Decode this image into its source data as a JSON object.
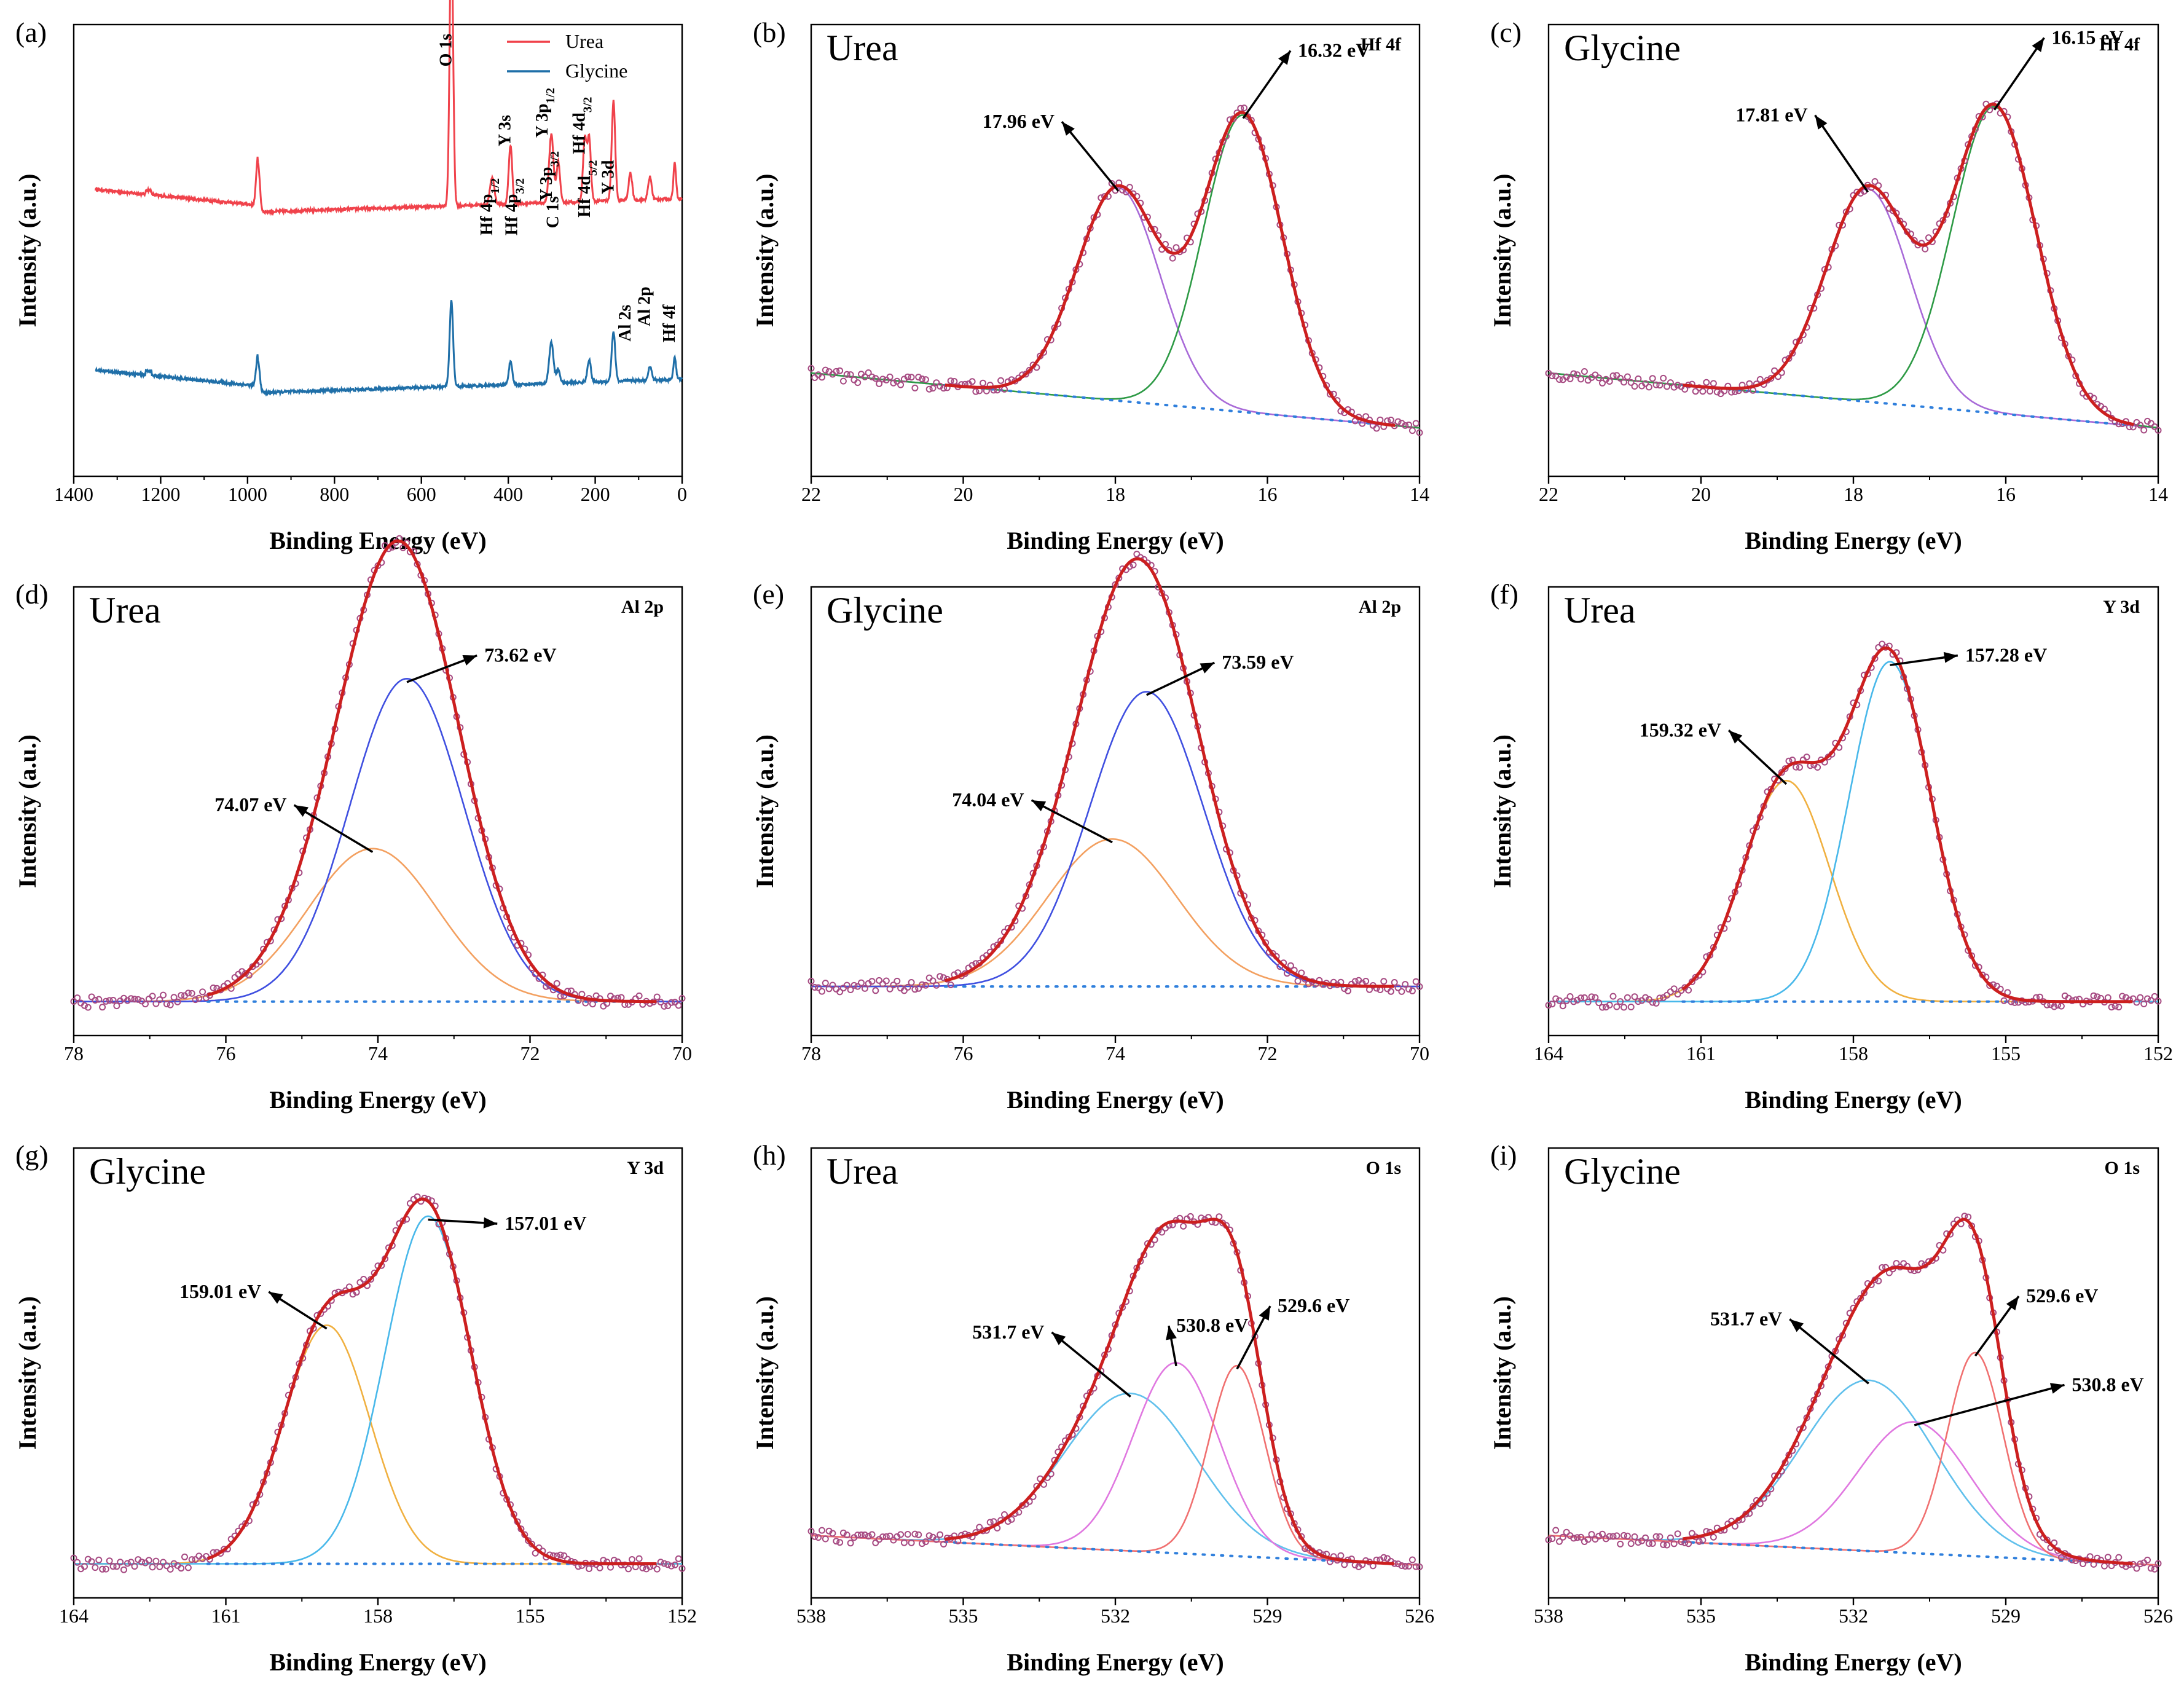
{
  "colors": {
    "envelope": "#cc1f1f",
    "raw": "#a64a82",
    "baseline": "#2f7fdc",
    "survey_urea": "#f0424b",
    "survey_glycine": "#1f6fa8",
    "hf_low": "#a86ad8",
    "hf_high": "#2d9a45",
    "al_a": "#f3a060",
    "al_b": "#3f4fe0",
    "y_a": "#f0b040",
    "y_b": "#48b8ea",
    "o_a": "#60c0ec",
    "o_b": "#e078e0",
    "o_c": "#f07070"
  },
  "chart_data": [
    {
      "panel": "(a)",
      "type": "line",
      "xlabel": "Binding Energy (eV)",
      "ylabel": "Intensity (a.u.)",
      "xlim": [
        1400,
        0
      ],
      "xticks": [
        "1400",
        "1200",
        "1000",
        "800",
        "600",
        "400",
        "200",
        "0"
      ],
      "legend": [
        "Urea",
        "Glycine"
      ],
      "series": [
        {
          "name": "Urea",
          "offset": 0.62,
          "peaks": [
            [
              976,
              0.11,
              4
            ],
            [
              531,
              0.62,
              4
            ],
            [
              437,
              0.06,
              5
            ],
            [
              395,
              0.13,
              4
            ],
            [
              301,
              0.15,
              5
            ],
            [
              285,
              0.09,
              4
            ],
            [
              224,
              0.14,
              4
            ],
            [
              214,
              0.14,
              4
            ],
            [
              158,
              0.22,
              4
            ],
            [
              119,
              0.06,
              4
            ],
            [
              74,
              0.05,
              4
            ],
            [
              17,
              0.08,
              3
            ]
          ]
        },
        {
          "name": "Glycine",
          "offset": 0.22,
          "peaks": [
            [
              976,
              0.07,
              4
            ],
            [
              531,
              0.19,
              4
            ],
            [
              395,
              0.05,
              4
            ],
            [
              301,
              0.09,
              5
            ],
            [
              285,
              0.03,
              4
            ],
            [
              214,
              0.05,
              4
            ],
            [
              158,
              0.11,
              4
            ],
            [
              74,
              0.03,
              4
            ],
            [
              17,
              0.05,
              3
            ]
          ]
        }
      ],
      "peak_labels": [
        {
          "name": "O 1s",
          "x": 531
        },
        {
          "name": "Hf 4p",
          "sub": "1/2",
          "x": 437
        },
        {
          "name": "Y 3s",
          "x": 395
        },
        {
          "name": "Hf 4p",
          "sub": "3/2",
          "x": 380
        },
        {
          "name": "Y 3p",
          "sub": "1/2",
          "x": 310
        },
        {
          "name": "Y 3p",
          "sub": "3/2",
          "x": 300
        },
        {
          "name": "C 1s",
          "x": 285
        },
        {
          "name": "Hf 4d",
          "sub": "3/2",
          "x": 224
        },
        {
          "name": "Hf 4d",
          "sub": "5/2",
          "x": 212
        },
        {
          "name": "Y 3d",
          "x": 158
        },
        {
          "name": "Al 2s",
          "x": 119
        },
        {
          "name": "Al 2p",
          "x": 74
        },
        {
          "name": "Hf 4f",
          "x": 17
        }
      ]
    },
    {
      "panel": "(b)",
      "sample": "Urea",
      "orbital": "Hf 4f",
      "type": "line",
      "xlabel": "Binding Energy (eV)",
      "ylabel": "Intensity (a.u.)",
      "xlim": [
        22,
        14
      ],
      "xticks": [
        "22",
        "20",
        "18",
        "16",
        "14"
      ],
      "ylim": [
        -0.2,
        1.2
      ],
      "baseline": [
        [
          22,
          0.12
        ],
        [
          14,
          -0.05
        ]
      ],
      "components": [
        {
          "center": 17.96,
          "amp": 0.66,
          "sigma": 0.55,
          "color": "hf_low",
          "label": "17.96 eV",
          "label_x": 18.8,
          "label_y": 0.88
        },
        {
          "center": 16.32,
          "amp": 0.92,
          "sigma": 0.52,
          "color": "hf_high",
          "label": "16.32 eV",
          "label_x": 15.6,
          "label_y": 1.1
        }
      ]
    },
    {
      "panel": "(c)",
      "sample": "Glycine",
      "orbital": "Hf 4f",
      "type": "line",
      "xlabel": "Binding Energy (eV)",
      "ylabel": "Intensity (a.u.)",
      "xlim": [
        22,
        14
      ],
      "xticks": [
        "22",
        "20",
        "18",
        "16",
        "14"
      ],
      "ylim": [
        -0.2,
        1.2
      ],
      "baseline": [
        [
          22,
          0.12
        ],
        [
          14,
          -0.05
        ]
      ],
      "components": [
        {
          "center": 17.81,
          "amp": 0.66,
          "sigma": 0.55,
          "color": "hf_low",
          "label": "17.81 eV",
          "label_x": 18.6,
          "label_y": 0.9
        },
        {
          "center": 16.15,
          "amp": 0.95,
          "sigma": 0.55,
          "color": "hf_high",
          "label": "16.15 eV",
          "label_x": 15.4,
          "label_y": 1.14
        }
      ]
    },
    {
      "panel": "(d)",
      "sample": "Urea",
      "orbital": "Al 2p",
      "type": "line",
      "xlabel": "Binding Energy (eV)",
      "ylabel": "Intensity (a.u.)",
      "xlim": [
        78,
        70
      ],
      "xticks": [
        "78",
        "76",
        "74",
        "72",
        "70"
      ],
      "ylim": [
        -0.1,
        1.22
      ],
      "baseline": [
        [
          78,
          0.0
        ],
        [
          70,
          0.0
        ]
      ],
      "components": [
        {
          "center": 74.07,
          "amp": 0.45,
          "sigma": 0.85,
          "color": "al_a",
          "label": "74.07 eV",
          "label_x": 75.2,
          "label_y": 0.56
        },
        {
          "center": 73.62,
          "amp": 0.95,
          "sigma": 0.75,
          "color": "al_b",
          "label": "73.62 eV",
          "label_x": 72.6,
          "label_y": 1.0
        }
      ]
    },
    {
      "panel": "(e)",
      "sample": "Glycine",
      "orbital": "Al 2p",
      "type": "line",
      "xlabel": "Binding Energy (eV)",
      "ylabel": "Intensity (a.u.)",
      "xlim": [
        78,
        70
      ],
      "xticks": [
        "78",
        "76",
        "74",
        "72",
        "70"
      ],
      "ylim": [
        -0.15,
        1.22
      ],
      "baseline": [
        [
          78,
          0.0
        ],
        [
          70,
          0.0
        ]
      ],
      "components": [
        {
          "center": 74.04,
          "amp": 0.45,
          "sigma": 0.85,
          "color": "al_a",
          "label": "74.04 eV",
          "label_x": 75.2,
          "label_y": 0.55
        },
        {
          "center": 73.59,
          "amp": 0.9,
          "sigma": 0.75,
          "color": "al_b",
          "label": "73.59 eV",
          "label_x": 72.6,
          "label_y": 0.97
        }
      ]
    },
    {
      "panel": "(f)",
      "sample": "Urea",
      "orbital": "Y 3d",
      "type": "line",
      "xlabel": "Binding Energy (eV)",
      "ylabel": "Intensity (a.u.)",
      "xlim": [
        164,
        152
      ],
      "xticks": [
        "164",
        "161",
        "158",
        "155",
        "152"
      ],
      "ylim": [
        -0.1,
        1.22
      ],
      "baseline": [
        [
          164,
          0.0
        ],
        [
          152,
          0.0
        ]
      ],
      "components": [
        {
          "center": 159.32,
          "amp": 0.65,
          "sigma": 0.85,
          "color": "y_a",
          "label": "159.32 eV",
          "label_x": 160.6,
          "label_y": 0.78
        },
        {
          "center": 157.28,
          "amp": 1.0,
          "sigma": 0.8,
          "color": "y_b",
          "label": "157.28 eV",
          "label_x": 155.8,
          "label_y": 1.0
        }
      ]
    },
    {
      "panel": "(g)",
      "sample": "Glycine",
      "orbital": "Y 3d",
      "type": "line",
      "xlabel": "Binding Energy (eV)",
      "ylabel": "Intensity (a.u.)",
      "xlim": [
        164,
        152
      ],
      "xticks": [
        "164",
        "161",
        "158",
        "155",
        "152"
      ],
      "ylim": [
        -0.1,
        1.22
      ],
      "baseline": [
        [
          164,
          0.0
        ],
        [
          152,
          0.0
        ]
      ],
      "components": [
        {
          "center": 159.01,
          "amp": 0.7,
          "sigma": 0.85,
          "color": "y_a",
          "label": "159.01 eV",
          "label_x": 160.3,
          "label_y": 0.78
        },
        {
          "center": 157.01,
          "amp": 1.02,
          "sigma": 0.85,
          "color": "y_b",
          "label": "157.01 eV",
          "label_x": 155.5,
          "label_y": 0.98
        }
      ]
    },
    {
      "panel": "(h)",
      "sample": "Urea",
      "orbital": "O 1s",
      "type": "line",
      "xlabel": "Binding Energy (eV)",
      "ylabel": "Intensity (a.u.)",
      "xlim": [
        538,
        526
      ],
      "xticks": [
        "538",
        "535",
        "532",
        "529",
        "526"
      ],
      "ylim": [
        -0.15,
        1.22
      ],
      "baseline": [
        [
          538,
          0.04
        ],
        [
          526,
          -0.05
        ]
      ],
      "components": [
        {
          "center": 531.7,
          "amp": 0.48,
          "sigma": 1.3,
          "color": "o_a",
          "label": "531.7 eV",
          "label_x": 533.4,
          "label_y": 0.64
        },
        {
          "center": 530.8,
          "amp": 0.58,
          "sigma": 0.85,
          "color": "o_b",
          "label": "530.8 eV",
          "label_x": 530.8,
          "label_y": 0.66
        },
        {
          "center": 529.6,
          "amp": 0.58,
          "sigma": 0.55,
          "color": "o_c",
          "label": "529.6 eV",
          "label_x": 528.8,
          "label_y": 0.72
        }
      ]
    },
    {
      "panel": "(i)",
      "sample": "Glycine",
      "orbital": "O 1s",
      "type": "line",
      "xlabel": "Binding Energy (eV)",
      "ylabel": "Intensity (a.u.)",
      "xlim": [
        538,
        526
      ],
      "xticks": [
        "538",
        "535",
        "532",
        "529",
        "526"
      ],
      "ylim": [
        -0.15,
        1.22
      ],
      "baseline": [
        [
          538,
          0.04
        ],
        [
          526,
          -0.05
        ]
      ],
      "components": [
        {
          "center": 531.7,
          "amp": 0.52,
          "sigma": 1.3,
          "color": "o_a",
          "label": "531.7 eV",
          "label_x": 533.4,
          "label_y": 0.68
        },
        {
          "center": 530.8,
          "amp": 0.4,
          "sigma": 1.1,
          "color": "o_b",
          "label": "530.8 eV",
          "label_x": 527.7,
          "label_y": 0.48
        },
        {
          "center": 529.6,
          "amp": 0.62,
          "sigma": 0.55,
          "color": "o_c",
          "label": "529.6 eV",
          "label_x": 528.6,
          "label_y": 0.75
        }
      ]
    }
  ]
}
